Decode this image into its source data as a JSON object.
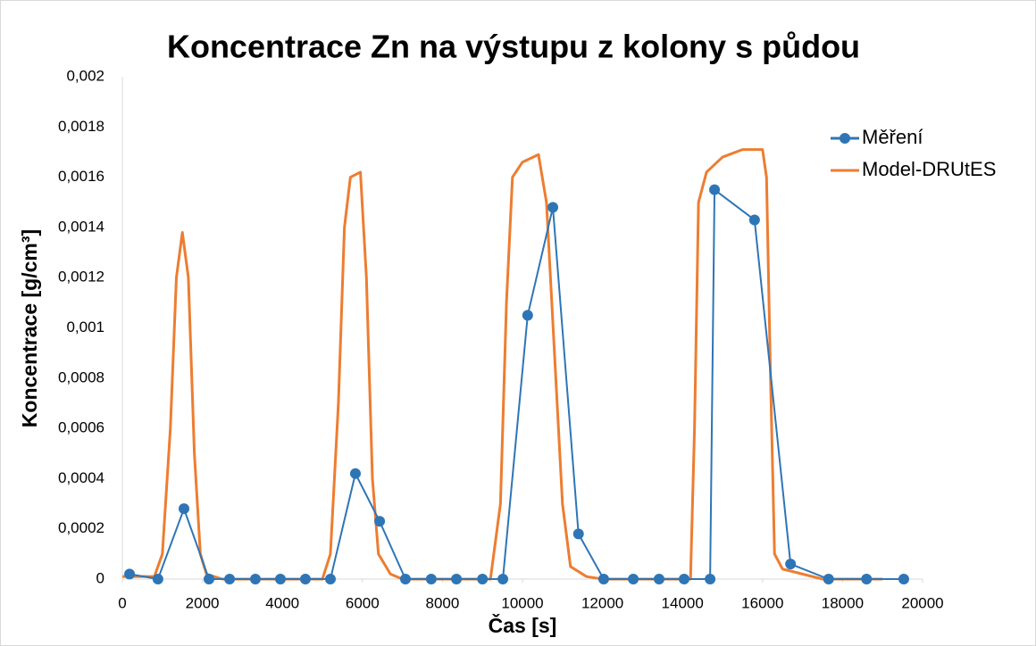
{
  "chart_data": {
    "type": "line",
    "title": "Koncentrace Zn na výstupu z kolony s půdou",
    "x_label": "Čas [s]",
    "y_label": "Koncentrace [g/cm³]",
    "xlim": [
      0,
      20000
    ],
    "xticks": [
      0,
      2000,
      4000,
      6000,
      8000,
      10000,
      12000,
      14000,
      16000,
      18000,
      20000
    ],
    "ylim": [
      0,
      0.002
    ],
    "yticks": [
      {
        "value": 0,
        "label": "0"
      },
      {
        "value": 0.0002,
        "label": "0,0002"
      },
      {
        "value": 0.0004,
        "label": "0,0004"
      },
      {
        "value": 0.0006,
        "label": "0,0006"
      },
      {
        "value": 0.0008,
        "label": "0,0008"
      },
      {
        "value": 0.001,
        "label": "0,001"
      },
      {
        "value": 0.0012,
        "label": "0,0012"
      },
      {
        "value": 0.0014,
        "label": "0,0014"
      },
      {
        "value": 0.0016,
        "label": "0,0016"
      },
      {
        "value": 0.0018,
        "label": "0,0018"
      },
      {
        "value": 0.002,
        "label": "0,002"
      }
    ],
    "grid": false,
    "legend": "upper right",
    "series": [
      {
        "name": "Měření",
        "color": "#2e75b6",
        "markers": true,
        "x": [
          180,
          890,
          1540,
          2165,
          2680,
          3325,
          3950,
          4575,
          5200,
          5825,
          6430,
          7075,
          7720,
          8350,
          9000,
          9510,
          10130,
          10760,
          11400,
          12030,
          12770,
          13415,
          14040,
          14690,
          14800,
          15800,
          16700,
          17650,
          18600,
          19530
        ],
        "values": [
          2e-05,
          0,
          0.00028,
          0,
          0,
          0,
          0,
          0,
          0,
          0.00042,
          0.00023,
          0,
          0,
          0,
          0,
          0,
          0.00105,
          0.00148,
          0.00018,
          0,
          0,
          0,
          0,
          0,
          0.00155,
          0.00143,
          6e-05,
          0,
          0,
          0
        ]
      },
      {
        "name": "Model-DRUtES",
        "color": "#ed7d31",
        "markers": false,
        "x": [
          0,
          800,
          1000,
          1200,
          1350,
          1500,
          1650,
          1800,
          1950,
          2100,
          2500,
          5000,
          5200,
          5400,
          5550,
          5700,
          5950,
          6100,
          6250,
          6400,
          6700,
          7000,
          9200,
          9450,
          9600,
          9750,
          10000,
          10400,
          10600,
          10800,
          11000,
          11200,
          11600,
          12000,
          14200,
          14300,
          14400,
          14600,
          15000,
          15500,
          16000,
          16100,
          16200,
          16300,
          16500,
          17000,
          17500,
          19000
        ],
        "values": [
          1e-05,
          1e-05,
          0.0001,
          0.0006,
          0.0012,
          0.00138,
          0.0012,
          0.0005,
          0.0001,
          2e-05,
          0,
          0,
          0.0001,
          0.0007,
          0.0014,
          0.0016,
          0.00162,
          0.0012,
          0.0004,
          0.0001,
          2e-05,
          0,
          0,
          0.0003,
          0.0011,
          0.0016,
          0.00166,
          0.00169,
          0.0015,
          0.0009,
          0.0003,
          5e-05,
          1e-05,
          0,
          0,
          0.0006,
          0.0015,
          0.00162,
          0.00168,
          0.00171,
          0.00171,
          0.0016,
          0.0008,
          0.0001,
          4e-05,
          2e-05,
          0,
          0
        ]
      }
    ]
  }
}
